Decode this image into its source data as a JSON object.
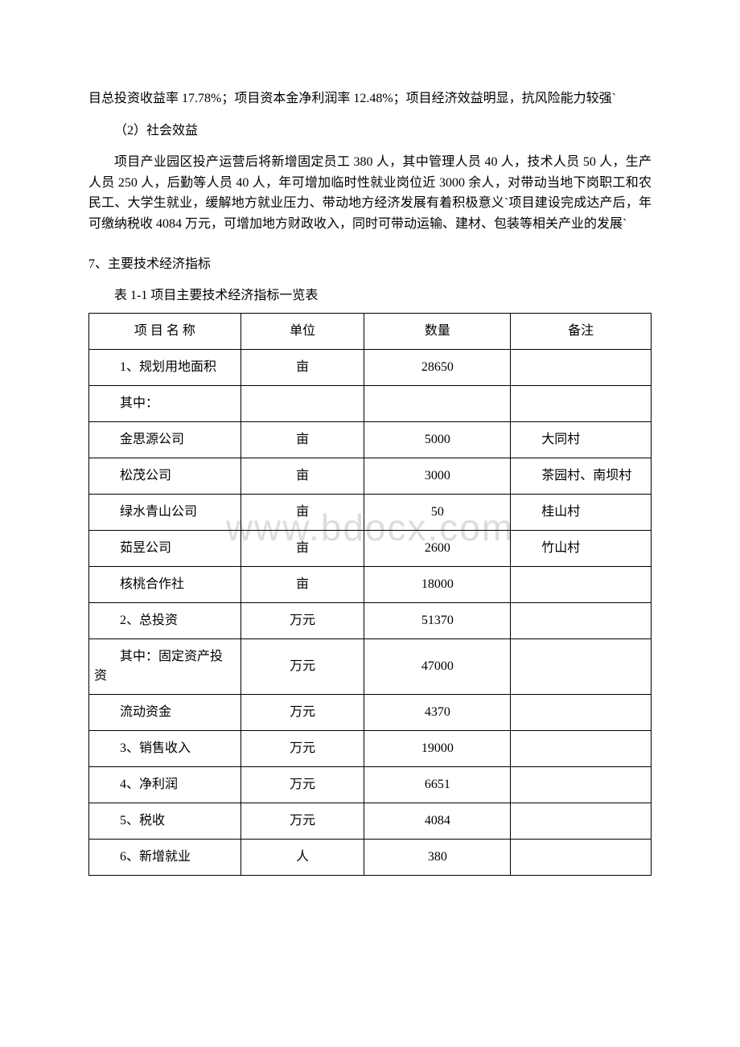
{
  "watermark": "www.bdocx.com",
  "paras": {
    "p1": "目总投资收益率 17.78%；项目资本金净利润率 12.48%；项目经济效益明显，抗风险能力较强`",
    "p2": "（2）社会效益",
    "p3": "项目产业园区投产运营后将新增固定员工 380 人，其中管理人员 40 人，技术人员 50 人，生产人员 250 人，后勤等人员 40 人，年可增加临时性就业岗位近 3000 余人，对带动当地下岗职工和农民工、大学生就业，缓解地方就业压力、带动地方经济发展有着积极意义`项目建设完成达产后，年可缴纳税收 4084 万元，可增加地方财政收入，同时可带动运输、建材、包装等相关产业的发展`"
  },
  "section7": "7、主要技术经济指标",
  "tableCaption": "表 1-1 项目主要技术经济指标一览表",
  "table": {
    "header": {
      "name": "项 目 名 称",
      "unit": "单位",
      "qty": "数量",
      "remark": "备注"
    },
    "rows": [
      {
        "name": "1、规划用地面积",
        "unit": "亩",
        "qty": "28650",
        "remark": ""
      },
      {
        "name": "其中：",
        "unit": "",
        "qty": "",
        "remark": ""
      },
      {
        "name": "金思源公司",
        "unit": "亩",
        "qty": "5000",
        "remark": "大同村"
      },
      {
        "name": "松茂公司",
        "unit": "亩",
        "qty": "3000",
        "remark": "茶园村、南坝村"
      },
      {
        "name": "绿水青山公司",
        "unit": "亩",
        "qty": "50",
        "remark": "桂山村"
      },
      {
        "name": "茹昱公司",
        "unit": "亩",
        "qty": "2600",
        "remark": "竹山村"
      },
      {
        "name": "核桃合作社",
        "unit": "亩",
        "qty": "18000",
        "remark": ""
      },
      {
        "name": "2、总投资",
        "unit": "万元",
        "qty": "51370",
        "remark": ""
      },
      {
        "name": "其中：固定资产投资",
        "unit": "万元",
        "qty": "47000",
        "remark": ""
      },
      {
        "name": "流动资金",
        "unit": "万元",
        "qty": "4370",
        "remark": ""
      },
      {
        "name": "3、销售收入",
        "unit": "万元",
        "qty": "19000",
        "remark": ""
      },
      {
        "name": "4、净利润",
        "unit": "万元",
        "qty": "6651",
        "remark": ""
      },
      {
        "name": "5、税收",
        "unit": "万元",
        "qty": "4084",
        "remark": ""
      },
      {
        "name": "6、新增就业",
        "unit": "人",
        "qty": "380",
        "remark": ""
      }
    ]
  }
}
